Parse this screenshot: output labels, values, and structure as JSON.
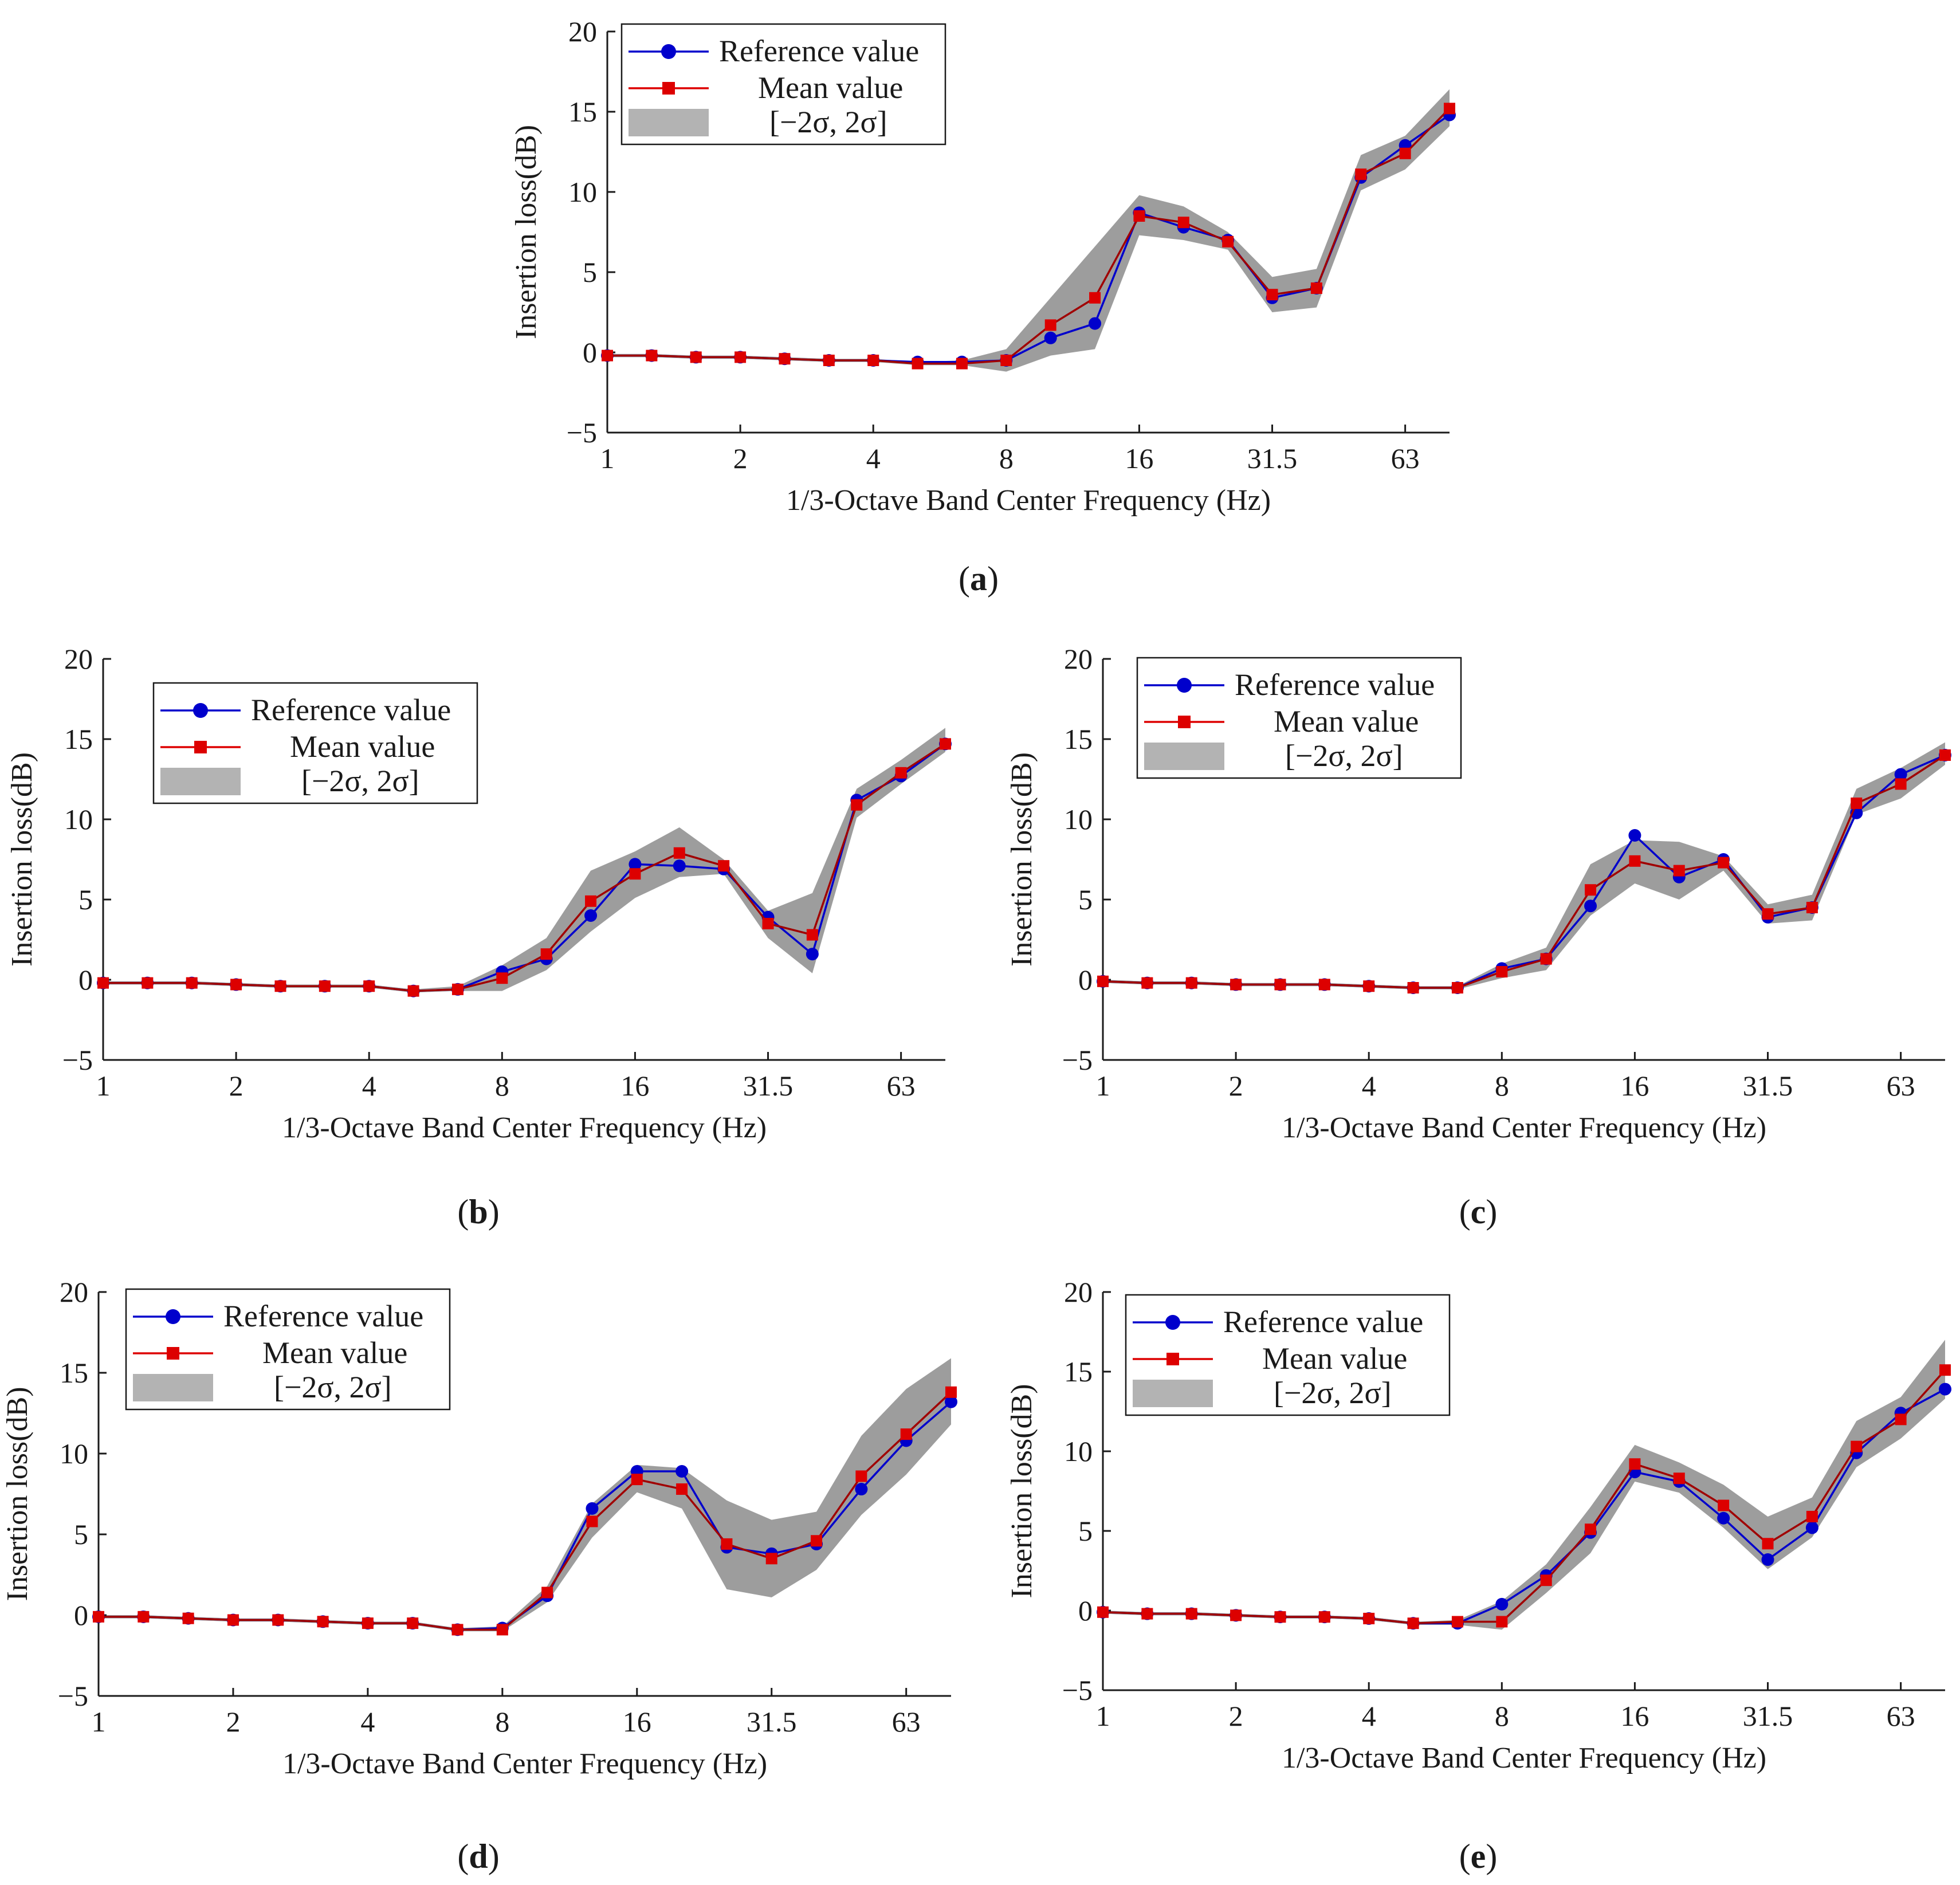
{
  "chart_data": [
    {
      "id": "a",
      "type": "line",
      "caption_letter": "a",
      "caption_open": "(",
      "caption_close": ")",
      "xlabel": "1/3-Octave Band Center Frequency (Hz)",
      "ylabel": "Insertion loss(dB)",
      "ylim": [
        -5,
        20
      ],
      "yticks": [
        "−5",
        "0",
        "5",
        "10",
        "15",
        "20"
      ],
      "xticks": [
        "1",
        "2",
        "4",
        "8",
        "16",
        "31.5",
        "63"
      ],
      "legend": {
        "placement": "top-left",
        "reference": "Reference value",
        "mean": "Mean value",
        "band": "[−2σ, 2σ]"
      },
      "series": [
        {
          "name": "Reference value",
          "color": "#0000cc",
          "values": [
            -0.2,
            -0.2,
            -0.3,
            -0.3,
            -0.4,
            -0.5,
            -0.5,
            -0.6,
            -0.6,
            -0.5,
            0.9,
            1.8,
            8.7,
            7.8,
            7.0,
            3.4,
            4.0,
            10.9,
            12.9,
            14.8
          ]
        },
        {
          "name": "Mean value",
          "color": "#dd0000",
          "values": [
            -0.2,
            -0.2,
            -0.3,
            -0.3,
            -0.4,
            -0.5,
            -0.5,
            -0.7,
            -0.7,
            -0.5,
            1.7,
            3.4,
            8.5,
            8.1,
            6.9,
            3.6,
            4.0,
            11.1,
            12.4,
            15.2
          ]
        }
      ],
      "band": {
        "name": "[−2σ, 2σ]",
        "lower": [
          -0.3,
          -0.3,
          -0.4,
          -0.4,
          -0.5,
          -0.6,
          -0.6,
          -0.8,
          -0.8,
          -1.2,
          -0.2,
          0.2,
          7.3,
          7.0,
          6.4,
          2.5,
          2.8,
          10.1,
          11.4,
          14.1
        ],
        "upper": [
          -0.1,
          -0.1,
          -0.2,
          -0.2,
          -0.3,
          -0.4,
          -0.4,
          -0.6,
          -0.5,
          0.2,
          3.4,
          6.6,
          9.8,
          9.1,
          7.5,
          4.7,
          5.2,
          12.3,
          13.5,
          16.4
        ]
      }
    },
    {
      "id": "b",
      "type": "line",
      "caption_letter": "b",
      "caption_open": "(",
      "caption_close": ")",
      "xlabel": "1/3-Octave Band Center Frequency (Hz)",
      "ylabel": "Insertion loss(dB)",
      "ylim": [
        -5,
        20
      ],
      "yticks": [
        "−5",
        "0",
        "5",
        "10",
        "15",
        "20"
      ],
      "xticks": [
        "1",
        "2",
        "4",
        "8",
        "16",
        "31.5",
        "63"
      ],
      "legend": {
        "placement": "top-left",
        "reference": "Reference value",
        "mean": "Mean value",
        "band": "[−2σ, 2σ]"
      },
      "series": [
        {
          "name": "Reference value",
          "color": "#0000cc",
          "values": [
            -0.2,
            -0.2,
            -0.2,
            -0.3,
            -0.4,
            -0.4,
            -0.4,
            -0.7,
            -0.6,
            0.5,
            1.3,
            4.0,
            7.2,
            7.1,
            6.9,
            3.9,
            1.6,
            11.2,
            12.7,
            14.7
          ]
        },
        {
          "name": "Mean value",
          "color": "#dd0000",
          "values": [
            -0.2,
            -0.2,
            -0.2,
            -0.3,
            -0.4,
            -0.4,
            -0.4,
            -0.7,
            -0.6,
            0.1,
            1.6,
            4.9,
            6.6,
            7.9,
            7.1,
            3.5,
            2.8,
            10.9,
            12.9,
            14.7
          ]
        }
      ],
      "band": {
        "name": "[−2σ, 2σ]",
        "lower": [
          -0.3,
          -0.3,
          -0.3,
          -0.4,
          -0.5,
          -0.5,
          -0.5,
          -0.8,
          -0.7,
          -0.7,
          0.6,
          3.0,
          5.1,
          6.4,
          6.6,
          2.6,
          0.4,
          10.1,
          12.2,
          14.2
        ],
        "upper": [
          -0.1,
          -0.1,
          -0.1,
          -0.2,
          -0.3,
          -0.3,
          -0.3,
          -0.6,
          -0.4,
          0.9,
          2.6,
          6.8,
          8.0,
          9.5,
          7.5,
          4.3,
          5.4,
          11.9,
          13.7,
          15.7
        ]
      }
    },
    {
      "id": "c",
      "type": "line",
      "caption_letter": "c",
      "caption_open": "(",
      "caption_close": ")",
      "xlabel": "1/3-Octave Band Center Frequency (Hz)",
      "ylabel": "Insertion loss(dB)",
      "ylim": [
        -5,
        20
      ],
      "yticks": [
        "−5",
        "0",
        "5",
        "10",
        "15",
        "20"
      ],
      "xticks": [
        "1",
        "2",
        "4",
        "8",
        "16",
        "31.5",
        "63"
      ],
      "legend": {
        "placement": "top-left",
        "reference": "Reference value",
        "mean": "Mean value",
        "band": "[−2σ, 2σ]"
      },
      "series": [
        {
          "name": "Reference value",
          "color": "#0000cc",
          "values": [
            -0.1,
            -0.2,
            -0.2,
            -0.3,
            -0.3,
            -0.3,
            -0.4,
            -0.5,
            -0.5,
            0.7,
            1.3,
            4.6,
            9.0,
            6.4,
            7.5,
            3.9,
            4.5,
            10.4,
            12.8,
            14.0
          ]
        },
        {
          "name": "Mean value",
          "color": "#dd0000",
          "values": [
            -0.1,
            -0.2,
            -0.2,
            -0.3,
            -0.3,
            -0.3,
            -0.4,
            -0.5,
            -0.5,
            0.5,
            1.3,
            5.6,
            7.4,
            6.8,
            7.3,
            4.1,
            4.5,
            11.0,
            12.2,
            14.0
          ]
        }
      ],
      "band": {
        "name": "[−2σ, 2σ]",
        "lower": [
          -0.2,
          -0.3,
          -0.3,
          -0.4,
          -0.4,
          -0.4,
          -0.5,
          -0.6,
          -0.6,
          0.1,
          0.6,
          4.0,
          6.0,
          5.0,
          6.8,
          3.5,
          3.7,
          10.3,
          11.3,
          13.4
        ],
        "upper": [
          0.0,
          -0.1,
          -0.1,
          -0.2,
          -0.2,
          -0.2,
          -0.3,
          -0.4,
          -0.4,
          1.0,
          2.0,
          7.2,
          8.7,
          8.6,
          7.7,
          4.7,
          5.3,
          11.9,
          13.2,
          14.8
        ]
      }
    },
    {
      "id": "d",
      "type": "line",
      "caption_letter": "d",
      "caption_open": "(",
      "caption_close": ")",
      "xlabel": "1/3-Octave Band Center Frequency (Hz)",
      "ylabel": "Insertion loss(dB)",
      "ylim": [
        -5,
        20
      ],
      "yticks": [
        "−5",
        "0",
        "5",
        "10",
        "15",
        "20"
      ],
      "xticks": [
        "1",
        "2",
        "4",
        "8",
        "16",
        "31.5",
        "63"
      ],
      "legend": {
        "placement": "top-left",
        "reference": "Reference value",
        "mean": "Mean value",
        "band": "[−2σ, 2σ]"
      },
      "series": [
        {
          "name": "Reference value",
          "color": "#0000cc",
          "values": [
            -0.1,
            -0.1,
            -0.2,
            -0.3,
            -0.3,
            -0.4,
            -0.5,
            -0.5,
            -0.9,
            -0.8,
            1.2,
            6.6,
            8.9,
            8.9,
            4.2,
            3.8,
            4.4,
            7.8,
            10.8,
            13.2
          ]
        },
        {
          "name": "Mean value",
          "color": "#dd0000",
          "values": [
            -0.1,
            -0.1,
            -0.2,
            -0.3,
            -0.3,
            -0.4,
            -0.5,
            -0.5,
            -0.9,
            -0.9,
            1.4,
            5.8,
            8.4,
            7.8,
            4.4,
            3.5,
            4.6,
            8.6,
            11.2,
            13.8
          ]
        }
      ],
      "band": {
        "name": "[−2σ, 2σ]",
        "lower": [
          -0.2,
          -0.2,
          -0.3,
          -0.4,
          -0.4,
          -0.5,
          -0.6,
          -0.6,
          -1.0,
          -1.0,
          0.8,
          4.8,
          7.6,
          6.6,
          1.6,
          1.1,
          2.8,
          6.2,
          8.7,
          11.8
        ],
        "upper": [
          0.0,
          0.0,
          -0.1,
          -0.2,
          -0.2,
          -0.3,
          -0.4,
          -0.4,
          -0.8,
          -0.7,
          1.8,
          6.9,
          9.3,
          9.1,
          7.1,
          5.9,
          6.4,
          11.1,
          14.0,
          15.9
        ]
      }
    },
    {
      "id": "e",
      "type": "line",
      "caption_letter": "e",
      "caption_open": "(",
      "caption_close": ")",
      "xlabel": "1/3-Octave Band Center Frequency (Hz)",
      "ylabel": "Insertion loss(dB)",
      "ylim": [
        -5,
        20
      ],
      "yticks": [
        "−5",
        "0",
        "5",
        "10",
        "15",
        "20"
      ],
      "xticks": [
        "1",
        "2",
        "4",
        "8",
        "16",
        "31.5",
        "63"
      ],
      "legend": {
        "placement": "top-left",
        "reference": "Reference value",
        "mean": "Mean value",
        "band": "[−2σ, 2σ]"
      },
      "series": [
        {
          "name": "Reference value",
          "color": "#0000cc",
          "values": [
            -0.1,
            -0.2,
            -0.2,
            -0.3,
            -0.4,
            -0.4,
            -0.5,
            -0.8,
            -0.8,
            0.4,
            2.2,
            4.9,
            8.7,
            8.1,
            5.8,
            3.2,
            5.2,
            9.9,
            12.4,
            13.9
          ]
        },
        {
          "name": "Mean value",
          "color": "#dd0000",
          "values": [
            -0.1,
            -0.2,
            -0.2,
            -0.3,
            -0.4,
            -0.4,
            -0.5,
            -0.8,
            -0.7,
            -0.7,
            1.9,
            5.1,
            9.2,
            8.3,
            6.6,
            4.2,
            5.9,
            10.3,
            12.0,
            15.1
          ]
        }
      ],
      "band": {
        "name": "[−2σ, 2σ]",
        "lower": [
          -0.2,
          -0.3,
          -0.3,
          -0.4,
          -0.5,
          -0.5,
          -0.6,
          -0.9,
          -0.9,
          -1.2,
          1.1,
          3.6,
          8.1,
          7.4,
          5.2,
          2.6,
          4.6,
          9.0,
          10.8,
          13.3
        ],
        "upper": [
          0.0,
          -0.1,
          -0.1,
          -0.2,
          -0.3,
          -0.3,
          -0.4,
          -0.7,
          -0.6,
          0.6,
          2.9,
          6.5,
          10.4,
          9.3,
          7.9,
          5.9,
          7.1,
          11.9,
          13.4,
          17.0
        ]
      }
    }
  ]
}
